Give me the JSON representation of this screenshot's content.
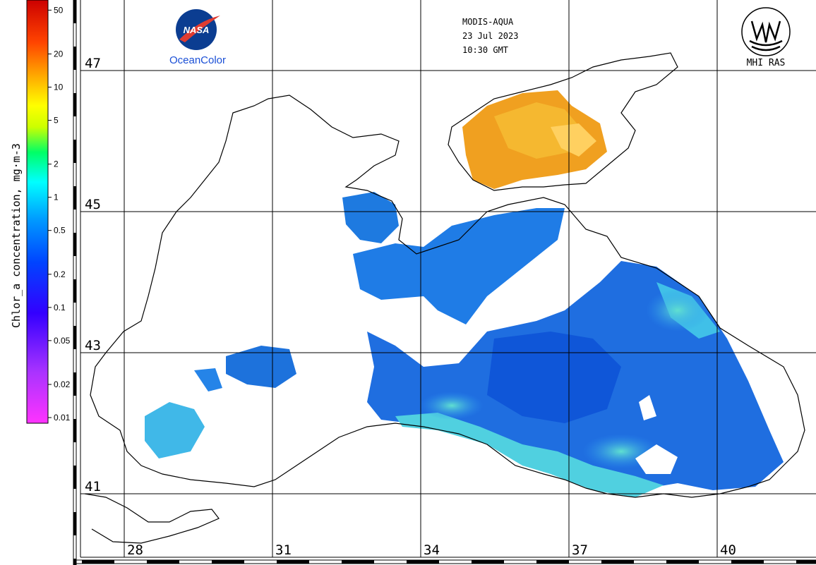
{
  "header": {
    "sensor": "MODIS-AQUA",
    "date": "23 Jul 2023",
    "time": "10:30 GMT"
  },
  "logos": {
    "left_logo_text": "NASA",
    "left_caption": "OceanColor",
    "right_caption": "MHI RAS"
  },
  "colorbar": {
    "title": "Chlor_a concentration, mg·m-3",
    "ticks": [
      {
        "label": "50",
        "value": 50
      },
      {
        "label": "20",
        "value": 20
      },
      {
        "label": "10",
        "value": 10
      },
      {
        "label": "5",
        "value": 5
      },
      {
        "label": "2",
        "value": 2
      },
      {
        "label": "1",
        "value": 1
      },
      {
        "label": "0.5",
        "value": 0.5
      },
      {
        "label": "0.2",
        "value": 0.2
      },
      {
        "label": "0.1",
        "value": 0.1
      },
      {
        "label": "0.05",
        "value": 0.05
      },
      {
        "label": "0.02",
        "value": 0.02
      },
      {
        "label": "0.01",
        "value": 0.01
      }
    ],
    "scale": "log",
    "range": [
      0.01,
      60
    ],
    "colors": [
      "#ff33ff",
      "#aa33ff",
      "#3300ff",
      "#0044ff",
      "#0099ff",
      "#00ffff",
      "#00ff66",
      "#ccff00",
      "#ffff00",
      "#ffaa00",
      "#ff4400",
      "#cc0000"
    ]
  },
  "map": {
    "latitudes": [
      "47",
      "45",
      "43",
      "41"
    ],
    "longitudes": [
      "28",
      "31",
      "34",
      "37",
      "40"
    ],
    "colors": {
      "land": "#ffffff",
      "coast": "#000000",
      "grid": "#000000",
      "low_chl": "#1e6fe0",
      "mid_chl": "#2a8ff0",
      "coastal_chl": "#50d8e0",
      "high_chl": "#f0a020"
    }
  }
}
